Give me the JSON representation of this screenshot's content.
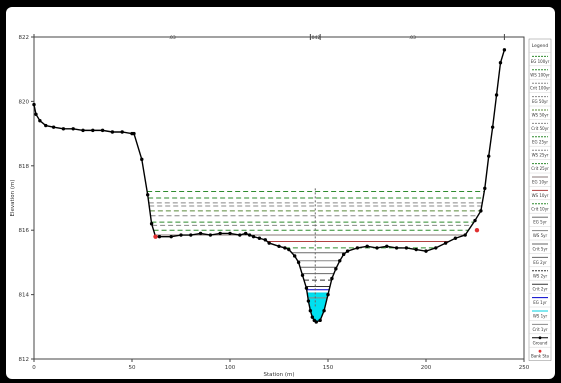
{
  "chart_data": {
    "type": "line",
    "xlabel": "Station (m)",
    "ylabel": "Elevation (m)",
    "xlim": [
      0,
      250
    ],
    "ylim": [
      812,
      822
    ],
    "xticks": [
      "0",
      "50",
      "100",
      "150",
      "200",
      "250"
    ],
    "yticks": [
      "812",
      "814",
      "816",
      "818",
      "820",
      "822"
    ],
    "reach_bar": {
      "breaks": [
        0,
        141,
        146,
        240
      ],
      "labels": [
        ".03",
        ".042",
        ".03"
      ]
    },
    "ground": {
      "name": "Ground",
      "color": "#000000",
      "x": [
        0,
        1,
        3,
        6,
        10,
        15,
        20,
        25,
        30,
        35,
        40,
        45,
        50,
        51,
        55,
        58,
        60,
        62,
        64,
        70,
        75,
        80,
        85,
        90,
        95,
        100,
        105,
        108,
        110,
        112,
        115,
        118,
        120,
        125,
        128,
        130,
        133,
        135,
        137,
        139,
        140,
        141,
        142,
        143,
        144,
        146,
        148,
        150,
        152,
        154,
        156,
        158,
        160,
        165,
        170,
        175,
        180,
        185,
        190,
        195,
        200,
        205,
        210,
        215,
        220,
        225,
        228,
        230,
        232,
        234,
        236,
        238,
        240
      ],
      "y": [
        819.9,
        819.6,
        819.4,
        819.25,
        819.2,
        819.15,
        819.15,
        819.1,
        819.1,
        819.1,
        819.05,
        819.05,
        819.0,
        819.0,
        818.2,
        817.1,
        816.2,
        815.8,
        815.8,
        815.8,
        815.85,
        815.85,
        815.9,
        815.85,
        815.9,
        815.9,
        815.85,
        815.9,
        815.85,
        815.8,
        815.75,
        815.7,
        815.6,
        815.5,
        815.45,
        815.4,
        815.2,
        815.0,
        814.6,
        814.2,
        813.8,
        813.5,
        813.3,
        813.2,
        813.15,
        813.2,
        813.5,
        814.0,
        814.5,
        814.8,
        815.05,
        815.25,
        815.35,
        815.45,
        815.5,
        815.45,
        815.5,
        815.45,
        815.45,
        815.4,
        815.35,
        815.45,
        815.6,
        815.75,
        815.85,
        816.3,
        816.6,
        817.3,
        818.3,
        819.2,
        820.2,
        821.2,
        821.6
      ]
    },
    "bank_sta": {
      "name": "Bank Sta",
      "color": "#e03030",
      "x": [
        62,
        226
      ],
      "y": [
        815.8,
        816.0
      ]
    },
    "ws_levels": [
      {
        "name": "EG 100yr",
        "y": 817.2,
        "color": "#2e8b2e",
        "dash": true
      },
      {
        "name": "WS 100yr",
        "y": 817.0,
        "color": "#2e8b2e",
        "dash": true
      },
      {
        "name": "Crit 100yr",
        "y": 816.85,
        "color": "#888888",
        "dash": true
      },
      {
        "name": "EG 50yr",
        "y": 816.75,
        "color": "#888888",
        "dash": true
      },
      {
        "name": "WS 50yr",
        "y": 816.6,
        "color": "#5a8a3a",
        "dash": true
      },
      {
        "name": "Crit 50yr",
        "y": 816.45,
        "color": "#888888",
        "dash": true
      },
      {
        "name": "EG 25yr",
        "y": 816.25,
        "color": "#2e8b2e",
        "dash": true
      },
      {
        "name": "WS 25yr",
        "y": 816.15,
        "color": "#888888",
        "dash": true
      },
      {
        "name": "Crit 25yr",
        "y": 816.0,
        "color": "#2e8b2e",
        "dash": true
      },
      {
        "name": "EG 10yr",
        "y": 815.85,
        "color": "#8a7a7a",
        "dash": false
      },
      {
        "name": "WS 10yr",
        "y": 815.65,
        "color": "#b04040",
        "dash": false
      },
      {
        "name": "Crit 10yr",
        "y": 815.45,
        "color": "#2e8b2e",
        "dash": true
      },
      {
        "name": "EG 5yr",
        "y": 815.3,
        "color": "#6a6a6a",
        "dash": false
      },
      {
        "name": "WS 5yr",
        "y": 815.05,
        "color": "#888888",
        "dash": false
      },
      {
        "name": "Crit 5yr",
        "y": 814.85,
        "color": "#666666",
        "dash": false
      },
      {
        "name": "EG 2yr",
        "y": 814.65,
        "color": "#666666",
        "dash": false
      },
      {
        "name": "WS 2yr",
        "y": 814.45,
        "color": "#333333",
        "dash": true
      },
      {
        "name": "Crit 2yr",
        "y": 814.25,
        "color": "#333333",
        "dash": false
      },
      {
        "name": "EG 1yr",
        "y": 814.15,
        "color": "#0000cc",
        "dash": false
      },
      {
        "name": "WS 1yr",
        "y": 814.05,
        "color": "#00d0e0",
        "dash": false,
        "fill": true
      },
      {
        "name": "Crit 1yr",
        "y": 813.9,
        "color": "#888888",
        "dash": false
      }
    ],
    "legend": {
      "title": "Legend",
      "placement": "right",
      "entries": [
        "EG 100yr",
        "WS 100yr",
        "Crit 100yr",
        "EG 50yr",
        "WS 50yr",
        "Crit 50yr",
        "EG 25yr",
        "WS 25yr",
        "Crit 25yr",
        "EG 10yr",
        "WS 10yr",
        "Crit 10yr",
        "EG 5yr",
        "WS 5yr",
        "Crit 5yr",
        "EG 2yr",
        "WS 2yr",
        "Crit 2yr",
        "EG 1yr",
        "WS 1yr",
        "Crit 1yr",
        "Ground",
        "Bank Sta"
      ]
    },
    "colors": {
      "water_fill": "#00e0f0",
      "plot_border": "#444444"
    }
  }
}
